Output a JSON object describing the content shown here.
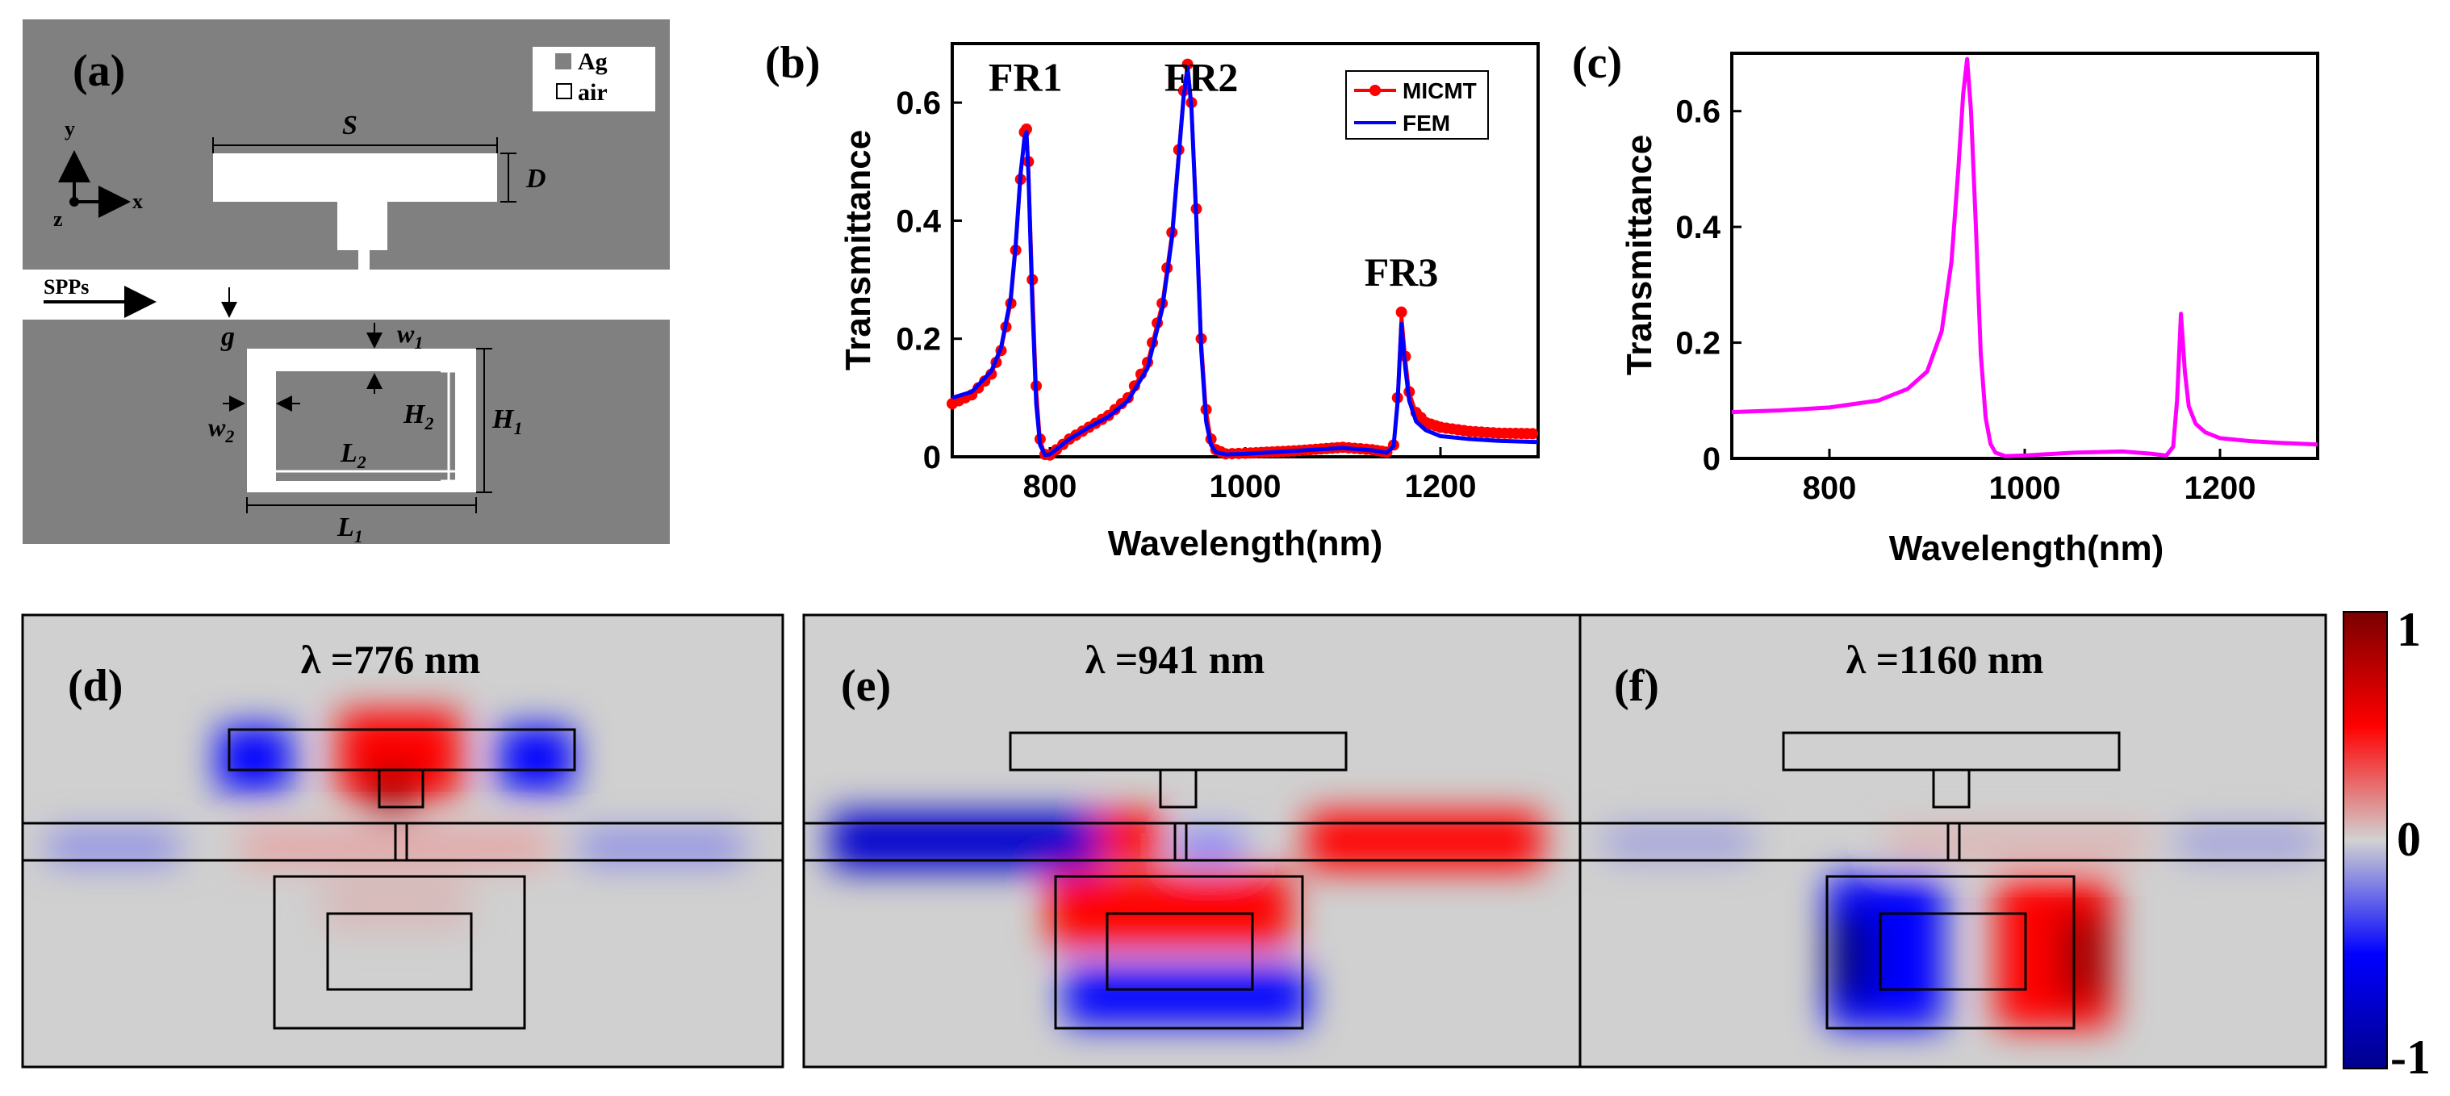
{
  "panels": {
    "a": {
      "label": "(a)",
      "legend": {
        "ag": "Ag",
        "air": "air"
      },
      "axes": {
        "y": "y",
        "z": "z",
        "x": "x"
      },
      "spps": "SPPs",
      "dims": {
        "S": "S",
        "D": "D",
        "g": "g",
        "w1": "w",
        "w1_sub": "1",
        "w2": "w",
        "w2_sub": "2",
        "H1": "H",
        "H1_sub": "1",
        "H2": "H",
        "H2_sub": "2",
        "L1": "L",
        "L1_sub": "1",
        "L2": "L",
        "L2_sub": "2"
      },
      "colors": {
        "metal": "#808080",
        "air": "#ffffff"
      }
    },
    "d": {
      "label": "(d)",
      "title": "λ =776 nm"
    },
    "e": {
      "label": "(e)",
      "title": "λ =941 nm"
    },
    "f": {
      "label": "(f)",
      "title": "λ =1160 nm"
    },
    "colorbar": {
      "max": "1",
      "mid": "0",
      "min": "-1",
      "colors": {
        "top": "#8b0000",
        "upper": "#ff0000",
        "mid": "#cfcfcf",
        "lower": "#0000ff",
        "bottom": "#000080"
      }
    }
  },
  "chart_data": [
    {
      "id": "b",
      "panel_label": "(b)",
      "type": "line",
      "xlabel": "Wavelength(nm)",
      "ylabel": "Transmittance",
      "xlim": [
        700,
        1300
      ],
      "ylim": [
        0,
        0.7
      ],
      "xticks": [
        "800",
        "1000",
        "1200"
      ],
      "xtick_values": [
        800,
        1000,
        1200
      ],
      "yticks": [
        "0",
        "0.2",
        "0.4",
        "0.6"
      ],
      "ytick_values": [
        0,
        0.2,
        0.4,
        0.6
      ],
      "legend_position": "top-right",
      "annotations": [
        {
          "text": "FR1",
          "x": 775,
          "y": 0.62
        },
        {
          "text": "FR2",
          "x": 955,
          "y": 0.62
        },
        {
          "text": "FR3",
          "x": 1160,
          "y": 0.29
        }
      ],
      "series": [
        {
          "name": "MICMT",
          "color": "#ff0000",
          "style": "line-dots",
          "x": [
            700,
            720,
            740,
            750,
            760,
            765,
            770,
            774,
            776,
            778,
            782,
            786,
            790,
            795,
            800,
            820,
            840,
            860,
            880,
            900,
            915,
            925,
            932,
            937,
            941,
            945,
            950,
            955,
            960,
            965,
            970,
            980,
            1000,
            1050,
            1100,
            1130,
            1145,
            1152,
            1156,
            1160,
            1164,
            1168,
            1175,
            1185,
            1200,
            1230,
            1260,
            1300
          ],
          "y": [
            0.09,
            0.105,
            0.14,
            0.18,
            0.26,
            0.35,
            0.47,
            0.55,
            0.555,
            0.5,
            0.3,
            0.12,
            0.03,
            0.004,
            0.003,
            0.03,
            0.05,
            0.07,
            0.1,
            0.16,
            0.26,
            0.38,
            0.52,
            0.62,
            0.665,
            0.6,
            0.42,
            0.2,
            0.08,
            0.03,
            0.012,
            0.005,
            0.006,
            0.01,
            0.016,
            0.012,
            0.008,
            0.02,
            0.1,
            0.245,
            0.17,
            0.11,
            0.075,
            0.058,
            0.05,
            0.043,
            0.04,
            0.039
          ]
        },
        {
          "name": "FEM",
          "color": "#0000ff",
          "style": "line",
          "x": [
            700,
            720,
            740,
            750,
            760,
            765,
            770,
            774,
            776,
            778,
            782,
            786,
            790,
            795,
            800,
            820,
            840,
            860,
            880,
            900,
            915,
            925,
            932,
            937,
            941,
            945,
            950,
            955,
            960,
            965,
            970,
            980,
            1000,
            1050,
            1100,
            1130,
            1145,
            1152,
            1156,
            1160,
            1164,
            1168,
            1175,
            1185,
            1200,
            1230,
            1260,
            1300
          ],
          "y": [
            0.1,
            0.11,
            0.145,
            0.185,
            0.27,
            0.36,
            0.48,
            0.54,
            0.55,
            0.48,
            0.26,
            0.09,
            0.02,
            0.003,
            0.004,
            0.03,
            0.05,
            0.068,
            0.095,
            0.15,
            0.25,
            0.37,
            0.51,
            0.61,
            0.66,
            0.59,
            0.4,
            0.18,
            0.06,
            0.02,
            0.008,
            0.004,
            0.005,
            0.01,
            0.015,
            0.011,
            0.007,
            0.018,
            0.09,
            0.225,
            0.15,
            0.095,
            0.06,
            0.045,
            0.035,
            0.03,
            0.027,
            0.025
          ]
        }
      ]
    },
    {
      "id": "c",
      "panel_label": "(c)",
      "type": "line",
      "xlabel": "Wavelength(nm)",
      "ylabel": "Transmittance",
      "xlim": [
        700,
        1300
      ],
      "ylim": [
        0,
        0.7
      ],
      "xticks": [
        "800",
        "1000",
        "1200"
      ],
      "xtick_values": [
        800,
        1000,
        1200
      ],
      "yticks": [
        "0",
        "0.2",
        "0.4",
        "0.6"
      ],
      "ytick_values": [
        0,
        0.2,
        0.4,
        0.6
      ],
      "series": [
        {
          "name": "transmittance",
          "color": "#ff00ff",
          "style": "line",
          "x": [
            700,
            750,
            800,
            850,
            880,
            900,
            915,
            925,
            932,
            937,
            941,
            945,
            950,
            955,
            960,
            965,
            970,
            980,
            1000,
            1050,
            1100,
            1130,
            1145,
            1152,
            1156,
            1160,
            1164,
            1168,
            1175,
            1185,
            1200,
            1230,
            1260,
            1300
          ],
          "y": [
            0.08,
            0.083,
            0.088,
            0.1,
            0.12,
            0.15,
            0.22,
            0.34,
            0.5,
            0.63,
            0.69,
            0.6,
            0.4,
            0.18,
            0.07,
            0.025,
            0.01,
            0.004,
            0.005,
            0.01,
            0.012,
            0.008,
            0.005,
            0.02,
            0.1,
            0.25,
            0.15,
            0.09,
            0.06,
            0.045,
            0.035,
            0.03,
            0.027,
            0.024
          ]
        }
      ]
    }
  ]
}
